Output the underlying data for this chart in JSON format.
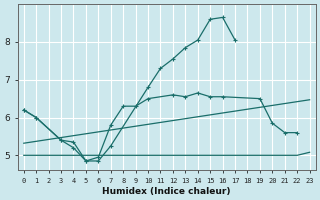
{
  "xlabel": "Humidex (Indice chaleur)",
  "bg_color": "#cde8ed",
  "grid_color": "#ffffff",
  "line_color": "#1a6e6a",
  "ylim": [
    4.6,
    9.0
  ],
  "yticks": [
    5,
    6,
    7,
    8
  ],
  "xticks": [
    0,
    1,
    2,
    3,
    4,
    5,
    6,
    7,
    8,
    9,
    10,
    11,
    12,
    13,
    14,
    15,
    16,
    17,
    18,
    19,
    20,
    21,
    22,
    23
  ],
  "line_peak": {
    "x": [
      0,
      1,
      3,
      4,
      5,
      6,
      7,
      10,
      11,
      12,
      13,
      14,
      15,
      16,
      17
    ],
    "y": [
      6.2,
      6.0,
      5.4,
      5.2,
      4.85,
      4.85,
      5.25,
      6.8,
      7.3,
      7.55,
      7.85,
      8.05,
      8.6,
      8.65,
      8.05
    ]
  },
  "line_mid": {
    "x": [
      0,
      1,
      3,
      4,
      5,
      6,
      7,
      8,
      9,
      10,
      12,
      13,
      14,
      15,
      16,
      19,
      20,
      21,
      22
    ],
    "y": [
      6.2,
      6.0,
      5.4,
      5.35,
      4.85,
      4.95,
      5.8,
      6.3,
      6.3,
      6.5,
      6.6,
      6.55,
      6.65,
      6.55,
      6.55,
      6.5,
      5.85,
      5.6,
      5.6
    ]
  },
  "line_diag": {
    "x": [
      0,
      1,
      2,
      3,
      4,
      5,
      6,
      7,
      8,
      9,
      10,
      11,
      12,
      13,
      14,
      15,
      16,
      17,
      18,
      19,
      20,
      21,
      22,
      23
    ],
    "y": [
      5.32,
      5.37,
      5.42,
      5.47,
      5.52,
      5.57,
      5.62,
      5.67,
      5.72,
      5.77,
      5.82,
      5.87,
      5.92,
      5.97,
      6.02,
      6.07,
      6.12,
      6.17,
      6.22,
      6.27,
      6.32,
      6.37,
      6.42,
      6.47
    ]
  },
  "line_flat": {
    "x": [
      0,
      1,
      2,
      3,
      4,
      5,
      6,
      7,
      8,
      9,
      10,
      11,
      12,
      13,
      14,
      15,
      16,
      17,
      18,
      19,
      20,
      21,
      22,
      23
    ],
    "y": [
      5.0,
      5.0,
      5.0,
      5.0,
      5.0,
      5.0,
      5.0,
      5.0,
      5.0,
      5.0,
      5.0,
      5.0,
      5.0,
      5.0,
      5.0,
      5.0,
      5.0,
      5.0,
      5.0,
      5.0,
      5.0,
      5.0,
      5.0,
      5.08
    ]
  }
}
